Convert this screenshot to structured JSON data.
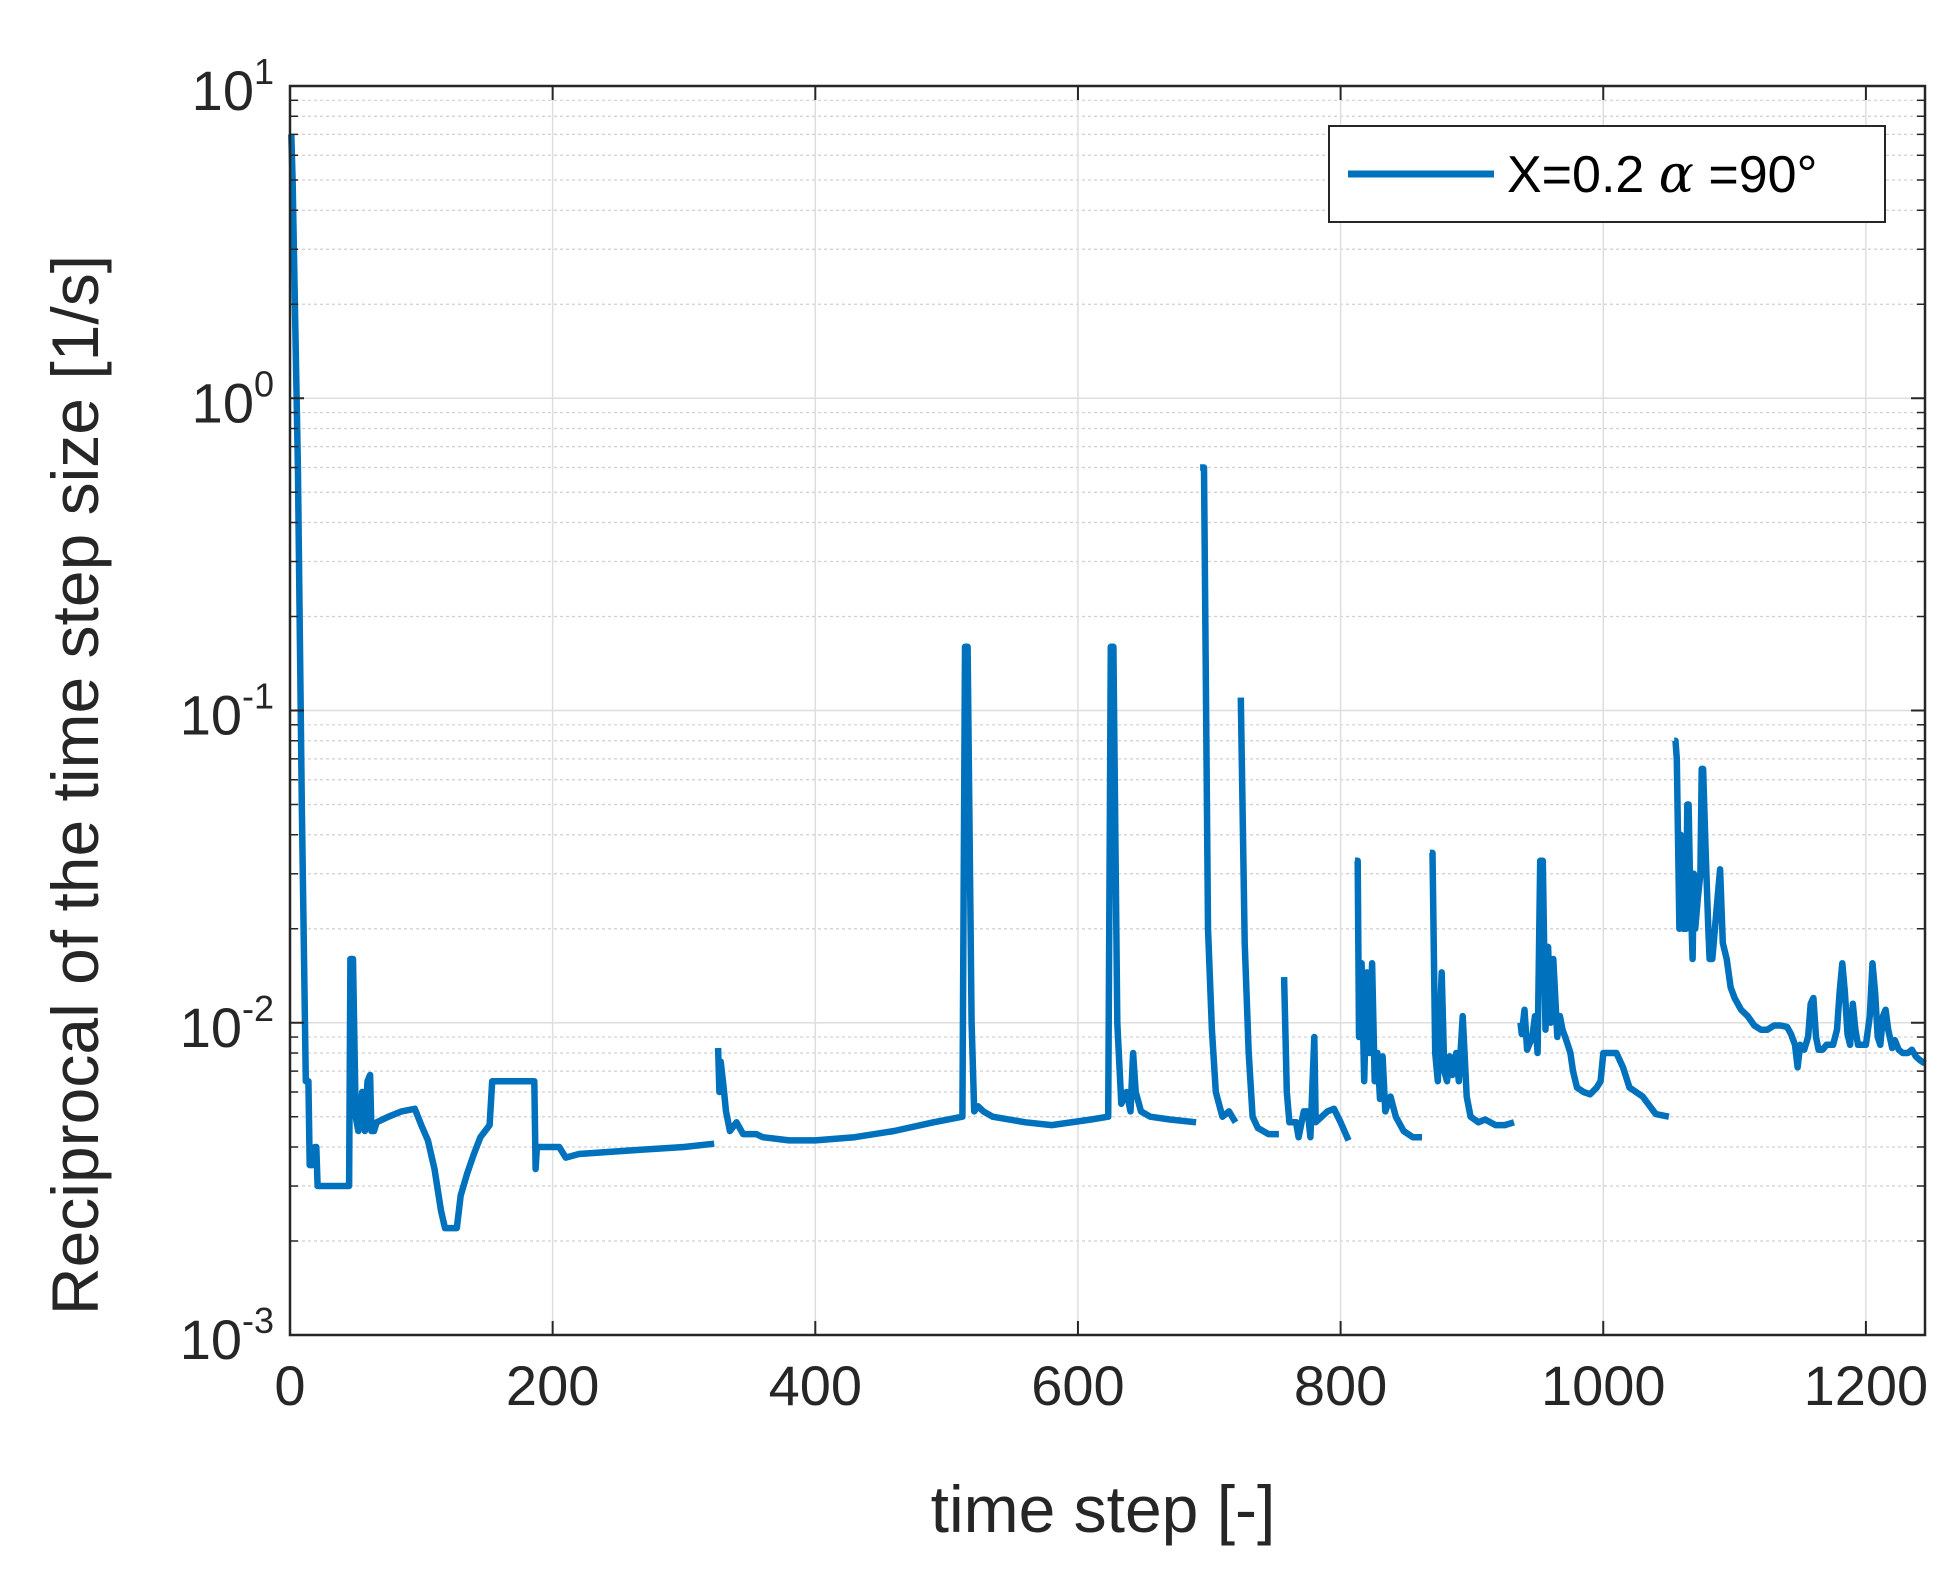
{
  "chart_data": {
    "type": "line",
    "xlabel": "time step [-]",
    "ylabel": "Reciprocal of the time step size [1/s]",
    "xlim": [
      0,
      1245
    ],
    "ylim": [
      0.001,
      10
    ],
    "yscale": "log",
    "grid": true,
    "legend_position": "top-right",
    "xticks": [
      "0",
      "200",
      "400",
      "600",
      "800",
      "1000",
      "1200"
    ],
    "xtick_values": [
      0,
      200,
      400,
      600,
      800,
      1000,
      1200
    ],
    "yticks": [
      {
        "base": "10",
        "exp": "-3"
      },
      {
        "base": "10",
        "exp": "-2"
      },
      {
        "base": "10",
        "exp": "-1"
      },
      {
        "base": "10",
        "exp": "0"
      },
      {
        "base": "10",
        "exp": "1"
      }
    ],
    "ytick_values": [
      0.001,
      0.01,
      0.1,
      1,
      10
    ],
    "series": [
      {
        "name_text": "X=0.2 ",
        "name_symbol": "α",
        "name_suffix": "=90°",
        "color": "#0072BD",
        "segments": [
          [
            [
              1,
              7.0
            ],
            [
              2,
              5.0
            ],
            [
              6,
              0.6
            ],
            [
              9,
              0.05
            ],
            [
              12,
              0.0065
            ],
            [
              14,
              0.0065
            ],
            [
              15,
              0.0035
            ],
            [
              17,
              0.0035
            ],
            [
              19,
              0.004
            ],
            [
              20,
              0.004
            ],
            [
              21,
              0.003
            ],
            [
              45,
              0.003
            ],
            [
              46,
              0.016
            ],
            [
              48,
              0.016
            ],
            [
              50,
              0.005
            ],
            [
              52,
              0.0045
            ],
            [
              55,
              0.006
            ],
            [
              57,
              0.0045
            ],
            [
              59,
              0.0065
            ],
            [
              61,
              0.0068
            ],
            [
              62,
              0.0045
            ],
            [
              64,
              0.0045
            ],
            [
              66,
              0.0048
            ],
            [
              75,
              0.005
            ],
            [
              85,
              0.0052
            ],
            [
              95,
              0.0053
            ],
            [
              100,
              0.0047
            ],
            [
              105,
              0.0042
            ],
            [
              110,
              0.0034
            ],
            [
              115,
              0.0025
            ],
            [
              118,
              0.0022
            ],
            [
              127,
              0.0022
            ],
            [
              130,
              0.0028
            ],
            [
              135,
              0.0033
            ],
            [
              140,
              0.0038
            ],
            [
              145,
              0.0043
            ],
            [
              152,
              0.0047
            ],
            [
              154,
              0.0065
            ],
            [
              186,
              0.0065
            ],
            [
              187,
              0.0034
            ],
            [
              188,
              0.004
            ],
            [
              205,
              0.004
            ],
            [
              210,
              0.0037
            ],
            [
              220,
              0.0038
            ],
            [
              260,
              0.0039
            ],
            [
              300,
              0.004
            ],
            [
              323,
              0.0041
            ]
          ],
          [
            [
              326,
              0.0083
            ],
            [
              327,
              0.006
            ],
            [
              328,
              0.0075
            ],
            [
              330,
              0.0063
            ],
            [
              332,
              0.0052
            ],
            [
              335,
              0.0045
            ],
            [
              340,
              0.0048
            ],
            [
              345,
              0.0044
            ],
            [
              355,
              0.0044
            ],
            [
              360,
              0.0043
            ],
            [
              380,
              0.0042
            ],
            [
              400,
              0.0042
            ],
            [
              430,
              0.0043
            ],
            [
              460,
              0.0045
            ],
            [
              490,
              0.0048
            ],
            [
              512,
              0.005
            ],
            [
              514,
              0.16
            ],
            [
              516,
              0.16
            ],
            [
              519,
              0.01
            ],
            [
              521,
              0.0052
            ],
            [
              524,
              0.0054
            ],
            [
              528,
              0.0052
            ],
            [
              535,
              0.005
            ],
            [
              560,
              0.0048
            ],
            [
              580,
              0.0047
            ],
            [
              610,
              0.0049
            ],
            [
              623,
              0.005
            ],
            [
              625,
              0.16
            ],
            [
              627,
              0.16
            ],
            [
              630,
              0.01
            ],
            [
              633,
              0.0055
            ],
            [
              637,
              0.006
            ],
            [
              640,
              0.0052
            ],
            [
              642,
              0.008
            ],
            [
              644,
              0.006
            ],
            [
              648,
              0.0052
            ],
            [
              655,
              0.005
            ],
            [
              670,
              0.0049
            ],
            [
              690,
              0.0048
            ]
          ],
          [
            [
              693,
              0.6
            ],
            [
              696,
              0.6
            ],
            [
              699,
              0.02
            ],
            [
              702,
              0.0095
            ],
            [
              705,
              0.006
            ],
            [
              710,
              0.005
            ],
            [
              715,
              0.0052
            ],
            [
              720,
              0.0048
            ]
          ],
          [
            [
              724,
              0.11
            ],
            [
              727,
              0.018
            ],
            [
              730,
              0.008
            ],
            [
              733,
              0.005
            ],
            [
              737,
              0.0046
            ],
            [
              745,
              0.0044
            ],
            [
              753,
              0.0044
            ]
          ],
          [
            [
              757,
              0.014
            ],
            [
              759,
              0.006
            ],
            [
              761,
              0.0048
            ],
            [
              766,
              0.0048
            ],
            [
              768,
              0.0043
            ],
            [
              772,
              0.0052
            ],
            [
              775,
              0.0052
            ],
            [
              777,
              0.0043
            ],
            [
              780,
              0.009
            ],
            [
              781,
              0.0048
            ],
            [
              790,
              0.0052
            ],
            [
              795,
              0.0053
            ],
            [
              800,
              0.0048
            ],
            [
              806,
              0.0042
            ]
          ],
          [
            [
              811,
              0.033
            ],
            [
              813,
              0.033
            ],
            [
              814,
              0.009
            ],
            [
              816,
              0.0155
            ],
            [
              818,
              0.0065
            ],
            [
              820,
              0.0145
            ],
            [
              822,
              0.008
            ],
            [
              824,
              0.0155
            ],
            [
              826,
              0.0065
            ],
            [
              828,
              0.008
            ],
            [
              830,
              0.0057
            ],
            [
              832,
              0.0078
            ],
            [
              834,
              0.0052
            ],
            [
              838,
              0.0058
            ],
            [
              842,
              0.005
            ],
            [
              848,
              0.0045
            ],
            [
              855,
              0.0043
            ],
            [
              862,
              0.0043
            ]
          ],
          [
            [
              868,
              0.035
            ],
            [
              870,
              0.035
            ],
            [
              872,
              0.008
            ],
            [
              874,
              0.0065
            ],
            [
              877,
              0.0145
            ],
            [
              879,
              0.007
            ],
            [
              881,
              0.0065
            ],
            [
              883,
              0.0078
            ],
            [
              885,
              0.0068
            ],
            [
              888,
              0.008
            ],
            [
              890,
              0.0065
            ],
            [
              893,
              0.0105
            ],
            [
              896,
              0.0058
            ],
            [
              899,
              0.005
            ],
            [
              905,
              0.0048
            ],
            [
              910,
              0.0049
            ],
            [
              918,
              0.0047
            ],
            [
              925,
              0.0047
            ],
            [
              932,
              0.0048
            ]
          ],
          [
            [
              937,
              0.01
            ],
            [
              938,
              0.0092
            ],
            [
              940,
              0.011
            ],
            [
              942,
              0.0082
            ],
            [
              946,
              0.009
            ],
            [
              948,
              0.0105
            ],
            [
              950,
              0.008
            ],
            [
              952,
              0.033
            ],
            [
              954,
              0.033
            ],
            [
              956,
              0.0095
            ],
            [
              958,
              0.0175
            ],
            [
              960,
              0.01
            ],
            [
              962,
              0.016
            ],
            [
              965,
              0.009
            ],
            [
              967,
              0.0105
            ],
            [
              969,
              0.0095
            ],
            [
              971,
              0.009
            ],
            [
              973,
              0.0085
            ],
            [
              975,
              0.008
            ],
            [
              977,
              0.007
            ],
            [
              980,
              0.0062
            ],
            [
              985,
              0.006
            ],
            [
              990,
              0.0059
            ],
            [
              995,
              0.0062
            ],
            [
              998,
              0.0065
            ],
            [
              1000,
              0.008
            ],
            [
              1005,
              0.008
            ],
            [
              1010,
              0.008
            ],
            [
              1015,
              0.0072
            ],
            [
              1020,
              0.0062
            ],
            [
              1030,
              0.0058
            ],
            [
              1040,
              0.0051
            ],
            [
              1050,
              0.005
            ]
          ],
          [
            [
              1054,
              0.08
            ],
            [
              1055,
              0.08
            ],
            [
              1056,
              0.07
            ],
            [
              1058,
              0.02
            ],
            [
              1059,
              0.04
            ],
            [
              1061,
              0.02
            ],
            [
              1063,
              0.02
            ],
            [
              1064,
              0.05
            ],
            [
              1065,
              0.05
            ],
            [
              1066,
              0.03
            ],
            [
              1068,
              0.016
            ],
            [
              1069,
              0.03
            ],
            [
              1070,
              0.02
            ],
            [
              1072,
              0.025
            ],
            [
              1074,
              0.03
            ],
            [
              1075,
              0.065
            ],
            [
              1076,
              0.065
            ],
            [
              1078,
              0.035
            ],
            [
              1080,
              0.02
            ],
            [
              1081,
              0.016
            ],
            [
              1083,
              0.016
            ],
            [
              1085,
              0.02
            ],
            [
              1087,
              0.025
            ],
            [
              1089,
              0.031
            ],
            [
              1091,
              0.018
            ],
            [
              1094,
              0.016
            ],
            [
              1097,
              0.013
            ],
            [
              1100,
              0.012
            ],
            [
              1105,
              0.011
            ],
            [
              1110,
              0.0105
            ],
            [
              1115,
              0.0098
            ],
            [
              1120,
              0.0095
            ],
            [
              1125,
              0.0095
            ],
            [
              1130,
              0.0098
            ],
            [
              1135,
              0.0098
            ],
            [
              1140,
              0.0097
            ],
            [
              1143,
              0.0092
            ],
            [
              1146,
              0.0085
            ],
            [
              1148,
              0.0072
            ],
            [
              1150,
              0.0085
            ],
            [
              1153,
              0.0082
            ],
            [
              1156,
              0.009
            ],
            [
              1158,
              0.0115
            ],
            [
              1160,
              0.012
            ],
            [
              1162,
              0.009
            ],
            [
              1164,
              0.0082
            ],
            [
              1167,
              0.0082
            ],
            [
              1170,
              0.0085
            ],
            [
              1175,
              0.0085
            ],
            [
              1178,
              0.0095
            ],
            [
              1180,
              0.0125
            ],
            [
              1182,
              0.0155
            ],
            [
              1184,
              0.0125
            ],
            [
              1186,
              0.0092
            ],
            [
              1188,
              0.0085
            ],
            [
              1190,
              0.0115
            ],
            [
              1192,
              0.0095
            ],
            [
              1194,
              0.0085
            ],
            [
              1197,
              0.0085
            ],
            [
              1200,
              0.0085
            ],
            [
              1203,
              0.0105
            ],
            [
              1205,
              0.0155
            ],
            [
              1207,
              0.0125
            ],
            [
              1209,
              0.009
            ],
            [
              1211,
              0.0085
            ],
            [
              1213,
              0.0105
            ],
            [
              1215,
              0.011
            ],
            [
              1217,
              0.0095
            ],
            [
              1220,
              0.0083
            ],
            [
              1222,
              0.0088
            ],
            [
              1225,
              0.0082
            ],
            [
              1228,
              0.008
            ],
            [
              1232,
              0.008
            ],
            [
              1235,
              0.0082
            ],
            [
              1238,
              0.0078
            ],
            [
              1241,
              0.0076
            ],
            [
              1245,
              0.0074
            ]
          ]
        ]
      }
    ]
  }
}
